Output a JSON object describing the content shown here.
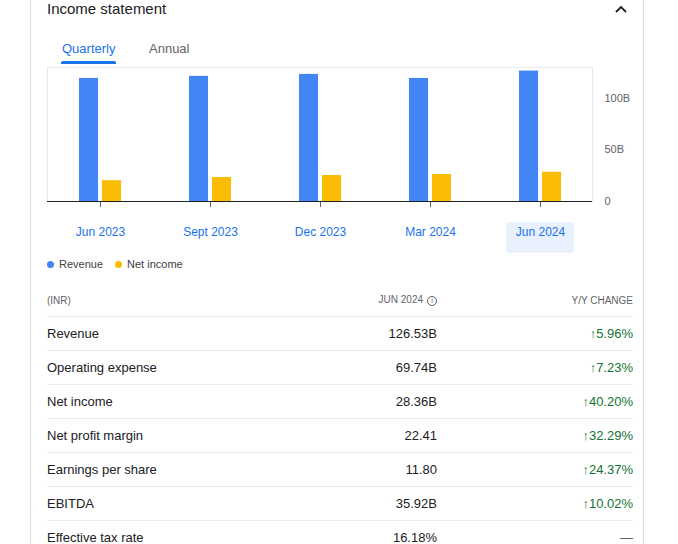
{
  "header": {
    "title": "Income statement"
  },
  "tabs": [
    {
      "label": "Quarterly",
      "selected": true
    },
    {
      "label": "Annual",
      "selected": false
    }
  ],
  "chart_data": {
    "type": "bar",
    "categories": [
      "Jun 2023",
      "Sept 2023",
      "Dec 2023",
      "Mar 2024",
      "Jun 2024"
    ],
    "series": [
      {
        "name": "Revenue",
        "color": "#4285f4",
        "values": [
          119.4,
          121.4,
          123.3,
          119.4,
          126.53
        ]
      },
      {
        "name": "Net income",
        "color": "#fbbc04",
        "values": [
          20.2,
          23.3,
          25.2,
          26.2,
          28.36
        ]
      }
    ],
    "ylim": [
      0,
      130
    ],
    "yticks": [
      0,
      {
        "value": 50,
        "label": "50B"
      },
      {
        "value": 100,
        "label": "100B"
      }
    ],
    "grid": false,
    "legend": "bottom"
  },
  "table": {
    "unit": "(INR)",
    "columns": [
      "JUN 2024",
      "Y/Y CHANGE"
    ],
    "rows": [
      [
        "Revenue",
        "126.53B",
        "↑5.96%"
      ],
      [
        "Operating expense",
        "69.74B",
        "↑7.23%"
      ],
      [
        "Net income",
        "28.36B",
        "↑40.20%"
      ],
      [
        "Net profit margin",
        "22.41",
        "↑32.29%"
      ],
      [
        "Earnings per share",
        "11.80",
        "↑24.37%"
      ],
      [
        "EBITDA",
        "35.92B",
        "↑10.02%"
      ],
      [
        "Effective tax rate",
        "16.18%",
        "—"
      ]
    ]
  }
}
